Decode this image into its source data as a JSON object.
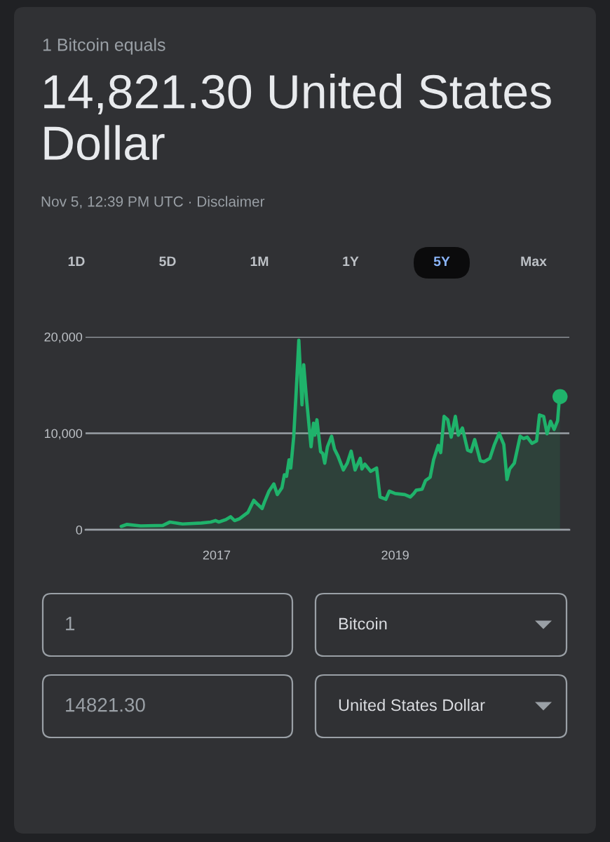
{
  "chart_data": {
    "type": "area",
    "title": "14,821.30 United States Dollar",
    "subtitle": "Nov 5, 12:39 PM UTC · Disclaimer",
    "annotations": [
      "1 Bitcoin equals",
      "1D",
      "5D",
      "1M",
      "1Y",
      "5Y",
      "Max",
      "1",
      "Bitcoin",
      "14821.30",
      "United States Dollar"
    ],
    "xlim": [
      "2015-07-15",
      "2020-12-13"
    ],
    "xticks": [
      {
        "value": "2017-01-01",
        "label": "2017"
      },
      {
        "value": "2019-01-01",
        "label": "2019"
      }
    ],
    "ylim": [
      0,
      20000
    ],
    "yticks": [
      0,
      {
        "value": 10000,
        "label": "10,000"
      },
      {
        "value": 20000,
        "label": "20,000"
      }
    ],
    "grid": "y",
    "series": [
      {
        "color": "#1fb36b",
        "x": [
          "2015-12-08",
          "2015-12-30",
          "2016-02-25",
          "2016-05-26",
          "2016-06-24",
          "2016-08-15",
          "2016-10-31",
          "2016-12-08",
          "2016-12-27",
          "2017-01-10",
          "2017-02-08",
          "2017-02-27",
          "2017-03-15",
          "2017-04-05",
          "2017-05-09",
          "2017-06-02",
          "2017-06-17",
          "2017-07-06",
          "2017-07-16",
          "2017-08-03",
          "2017-08-23",
          "2017-09-06",
          "2017-09-25",
          "2017-10-05",
          "2017-10-14",
          "2017-10-24",
          "2017-10-31",
          "2017-11-12",
          "2017-11-22",
          "2017-12-03",
          "2017-12-16",
          "2017-12-23",
          "2018-01-03",
          "2018-01-22",
          "2018-02-01",
          "2018-02-06",
          "2018-02-15",
          "2018-03-02",
          "2018-03-11",
          "2018-03-19",
          "2018-03-30",
          "2018-04-16",
          "2018-04-28",
          "2018-05-12",
          "2018-06-03",
          "2018-06-19",
          "2018-07-05",
          "2018-07-21",
          "2018-08-11",
          "2018-08-18",
          "2018-08-30",
          "2018-09-23",
          "2018-10-17",
          "2018-10-31",
          "2018-11-24",
          "2018-12-08",
          "2019-01-01",
          "2019-02-09",
          "2019-03-04",
          "2019-03-18",
          "2019-03-28",
          "2019-04-21",
          "2019-05-05",
          "2019-05-24",
          "2019-06-07",
          "2019-06-26",
          "2019-07-06",
          "2019-07-20",
          "2019-08-04",
          "2019-08-18",
          "2019-09-04",
          "2019-09-16",
          "2019-10-03",
          "2019-10-24",
          "2019-11-07",
          "2019-11-22",
          "2019-12-15",
          "2019-12-30",
          "2020-01-23",
          "2020-02-11",
          "2020-03-01",
          "2020-03-20",
          "2020-04-02",
          "2020-04-13",
          "2020-05-02",
          "2020-05-26",
          "2020-06-09",
          "2020-06-24",
          "2020-07-13",
          "2020-08-01",
          "2020-08-13",
          "2020-08-30",
          "2020-09-13",
          "2020-09-27",
          "2020-10-12",
          "2020-10-26",
          "2020-11-01",
          "2020-11-05"
        ],
        "values": [
          350,
          550,
          400,
          450,
          800,
          600,
          700,
          800,
          950,
          800,
          1050,
          1350,
          950,
          1150,
          1800,
          3050,
          2650,
          2200,
          2900,
          4000,
          4750,
          3650,
          4350,
          5700,
          5550,
          7250,
          6400,
          9600,
          14200,
          19650,
          12950,
          17100,
          13700,
          8600,
          11050,
          9800,
          11400,
          8100,
          7900,
          6900,
          8600,
          9700,
          8350,
          7650,
          6200,
          6900,
          8150,
          6200,
          7400,
          6300,
          6800,
          6050,
          6400,
          3400,
          3150,
          4000,
          3750,
          3650,
          3400,
          3750,
          4100,
          4200,
          5100,
          5450,
          7250,
          8750,
          8000,
          11750,
          11400,
          9600,
          11750,
          9800,
          10550,
          8250,
          8100,
          9350,
          7150,
          7050,
          7400,
          8850,
          10000,
          8850,
          5200,
          6300,
          6900,
          9700,
          9450,
          9600,
          8950,
          9200,
          11900,
          11750,
          9950,
          11250,
          10400,
          11300,
          13200,
          13800
        ]
      },
      {
        "type": "scatter",
        "marker": "circle",
        "color": "#1fb36b",
        "x": [
          "2020-11-05"
        ],
        "values": [
          13800
        ]
      }
    ]
  }
}
